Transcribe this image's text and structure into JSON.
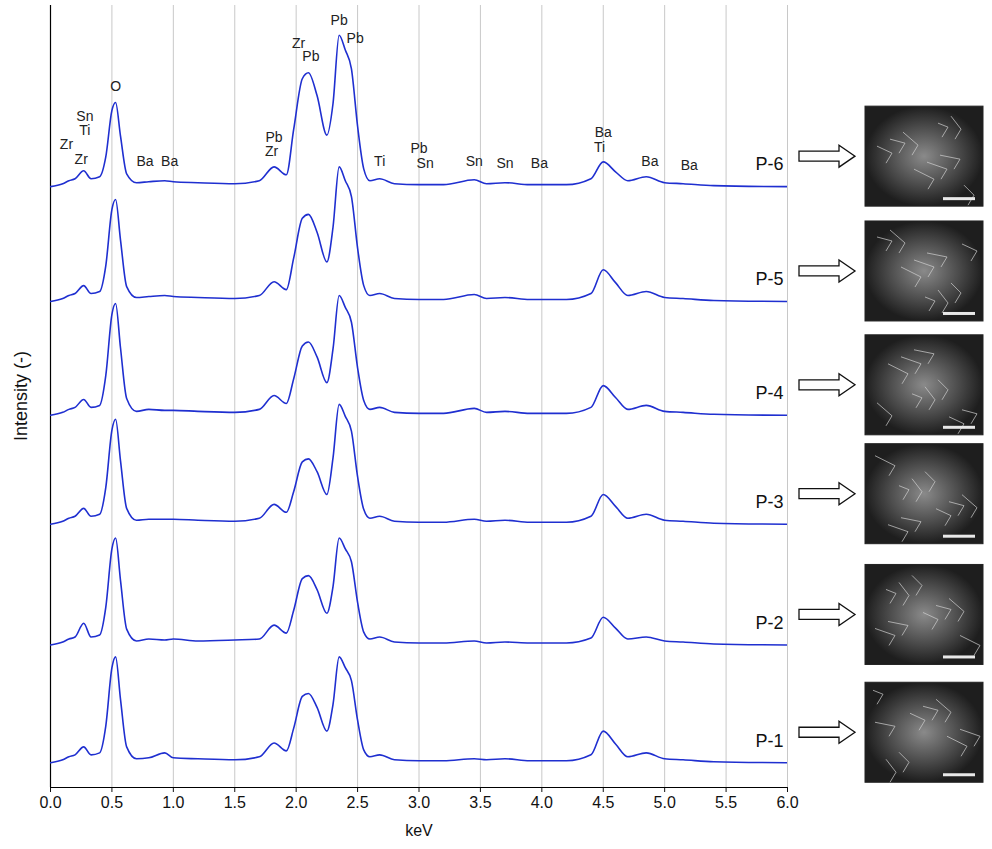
{
  "chart_data": {
    "type": "line",
    "xlabel": "keV",
    "ylabel": "Intensity (-)",
    "xlim": [
      0,
      6
    ],
    "ylim": [
      0,
      790
    ],
    "xticks": [
      {
        "value": 0,
        "label": "0.0"
      },
      0.5,
      {
        "value": 1,
        "label": "1.0"
      },
      1.5,
      {
        "value": 2,
        "label": "2.0"
      },
      2.5,
      {
        "value": 3,
        "label": "3.0"
      },
      3.5,
      {
        "value": 4,
        "label": "4.0"
      },
      4.5,
      {
        "value": 5,
        "label": "5.0"
      },
      5.5,
      {
        "value": 6,
        "label": "6.0"
      }
    ],
    "grid": true,
    "tick_labels": "x",
    "x": [
      0.0,
      0.1,
      0.15,
      0.2,
      0.27,
      0.33,
      0.4,
      0.45,
      0.5,
      0.53,
      0.57,
      0.62,
      0.7,
      0.8,
      0.93,
      1.0,
      1.2,
      1.5,
      1.7,
      1.82,
      1.92,
      1.98,
      2.05,
      2.1,
      2.17,
      2.25,
      2.3,
      2.35,
      2.4,
      2.45,
      2.5,
      2.55,
      2.6,
      2.68,
      2.8,
      3.0,
      3.2,
      3.45,
      3.55,
      3.7,
      3.9,
      4.2,
      4.4,
      4.5,
      4.6,
      4.7,
      4.85,
      5.0,
      5.15,
      5.4,
      6.0
    ],
    "series": [
      {
        "name": "P-1",
        "color": "#1f2fd0",
        "values": [
          25,
          28,
          31,
          33,
          41,
          33,
          35,
          62,
          121,
          132,
          89,
          41,
          29,
          30,
          35,
          30,
          29,
          28,
          31,
          45,
          37,
          60,
          92,
          95,
          81,
          57,
          84,
          132,
          121,
          108,
          68,
          38,
          31,
          33,
          28,
          27,
          27,
          29,
          28,
          29,
          27,
          27,
          33,
          57,
          44,
          31,
          35,
          29,
          28,
          26,
          25
        ]
      },
      {
        "name": "P-2",
        "color": "#1f2fd0",
        "values": [
          144,
          147,
          150,
          152,
          166,
          152,
          154,
          182,
          241,
          252,
          209,
          160,
          148,
          150,
          149,
          150,
          148,
          149,
          150,
          164,
          156,
          179,
          211,
          214,
          200,
          176,
          203,
          252,
          241,
          228,
          187,
          157,
          150,
          152,
          147,
          146,
          146,
          148,
          146,
          147,
          146,
          146,
          151,
          172,
          161,
          150,
          152,
          148,
          147,
          145,
          144
        ]
      },
      {
        "name": "P-3",
        "color": "#1f2fd0",
        "values": [
          266,
          269,
          272,
          274,
          282,
          274,
          276,
          303,
          361,
          372,
          330,
          282,
          270,
          271,
          271,
          271,
          270,
          269,
          272,
          286,
          278,
          299,
          329,
          332,
          319,
          296,
          333,
          387,
          375,
          360,
          314,
          281,
          272,
          274,
          269,
          268,
          268,
          271,
          269,
          270,
          268,
          268,
          274,
          296,
          284,
          272,
          276,
          270,
          269,
          267,
          266
        ]
      },
      {
        "name": "P-4",
        "color": "#1f2fd0",
        "values": [
          376,
          379,
          382,
          384,
          392,
          384,
          386,
          416,
          478,
          489,
          444,
          393,
          380,
          382,
          381,
          381,
          380,
          379,
          382,
          396,
          388,
          413,
          446,
          450,
          435,
          409,
          443,
          497,
          485,
          470,
          424,
          391,
          382,
          384,
          379,
          378,
          378,
          383,
          379,
          380,
          378,
          378,
          384,
          406,
          394,
          382,
          386,
          380,
          379,
          377,
          376
        ]
      },
      {
        "name": "P-5",
        "color": "#1f2fd0",
        "values": [
          491,
          494,
          497,
          499,
          507,
          499,
          501,
          527,
          584,
          594,
          553,
          506,
          495,
          496,
          497,
          496,
          495,
          494,
          497,
          511,
          503,
          535,
          575,
          579,
          561,
          531,
          566,
          627,
          613,
          597,
          545,
          507,
          497,
          499,
          494,
          493,
          493,
          498,
          494,
          495,
          493,
          493,
          499,
          523,
          510,
          497,
          501,
          495,
          494,
          492,
          491
        ]
      },
      {
        "name": "P-6",
        "color": "#1f2fd0",
        "values": [
          607,
          610,
          613,
          615,
          623,
          615,
          617,
          637,
          684,
          692,
          658,
          620,
          611,
          612,
          613,
          612,
          611,
          610,
          613,
          627,
          619,
          665,
          716,
          722,
          699,
          659,
          691,
          760,
          745,
          726,
          668,
          625,
          613,
          615,
          610,
          609,
          609,
          614,
          610,
          611,
          609,
          609,
          615,
          632,
          622,
          613,
          617,
          611,
          610,
          608,
          607
        ]
      }
    ],
    "annotations": [
      {
        "text": "Sn",
        "x": 0.28,
        "y": 678
      },
      {
        "text": "Ti",
        "x": 0.28,
        "y": 664
      },
      {
        "text": "Zr",
        "x": 0.13,
        "y": 650
      },
      {
        "text": "Zr",
        "x": 0.25,
        "y": 634
      },
      {
        "text": "O",
        "x": 0.53,
        "y": 708
      },
      {
        "text": "Ba",
        "x": 0.77,
        "y": 632
      },
      {
        "text": "Ba",
        "x": 0.97,
        "y": 632
      },
      {
        "text": "Pb",
        "x": 1.82,
        "y": 657
      },
      {
        "text": "Zr",
        "x": 1.8,
        "y": 642
      },
      {
        "text": "Zr",
        "x": 2.02,
        "y": 752
      },
      {
        "text": "Pb",
        "x": 2.12,
        "y": 738
      },
      {
        "text": "Pb",
        "x": 2.35,
        "y": 775
      },
      {
        "text": "Pb",
        "x": 2.48,
        "y": 757
      },
      {
        "text": "Ti",
        "x": 2.68,
        "y": 632
      },
      {
        "text": "Pb",
        "x": 3.0,
        "y": 646
      },
      {
        "text": "Sn",
        "x": 3.05,
        "y": 630
      },
      {
        "text": "Sn",
        "x": 3.45,
        "y": 632
      },
      {
        "text": "Sn",
        "x": 3.7,
        "y": 630
      },
      {
        "text": "Ba",
        "x": 3.98,
        "y": 630
      },
      {
        "text": "Ba",
        "x": 4.5,
        "y": 662
      },
      {
        "text": "Ti",
        "x": 4.47,
        "y": 647
      },
      {
        "text": "Ba",
        "x": 4.88,
        "y": 632
      },
      {
        "text": "Ba",
        "x": 5.2,
        "y": 628
      }
    ]
  }
}
